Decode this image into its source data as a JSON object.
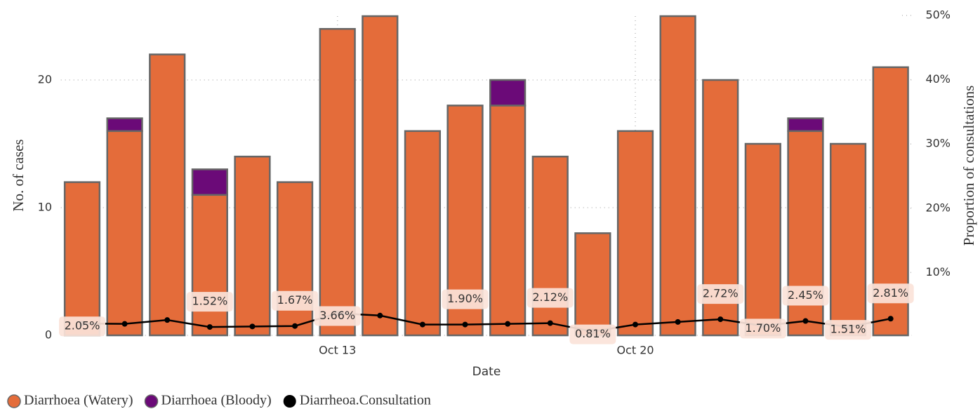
{
  "chart_data": {
    "type": "bar",
    "x_label": "Date",
    "y_label": "No. of cases",
    "y2_label": "Proportion of consultations",
    "categories": [
      null,
      null,
      null,
      null,
      null,
      null,
      "Oct 13",
      null,
      null,
      null,
      null,
      null,
      null,
      "Oct 20",
      null,
      null,
      null,
      null,
      null,
      null
    ],
    "series": [
      {
        "name": "Diarrhoea (Watery)",
        "color": "#e46c3a",
        "values": [
          12,
          16,
          22,
          11,
          14,
          12,
          24,
          25,
          16,
          18,
          18,
          14,
          8,
          16,
          25,
          20,
          15,
          16,
          15,
          21
        ]
      },
      {
        "name": "Diarrhoea (Bloody)",
        "color": "#6b0a78",
        "values": [
          0,
          1,
          0,
          2,
          0,
          0,
          0,
          0,
          0,
          0,
          2,
          0,
          0,
          0,
          0,
          0,
          0,
          1,
          0,
          0
        ]
      },
      {
        "name": "Diarrheoa.Consultation",
        "color": "#000000",
        "axis": "y2",
        "type": "line",
        "values": [
          2.05,
          2.0,
          2.6,
          1.52,
          1.6,
          1.67,
          3.66,
          3.3,
          1.9,
          1.9,
          2.0,
          2.12,
          0.81,
          1.9,
          2.3,
          2.72,
          1.7,
          2.45,
          1.51,
          2.81
        ],
        "value_labels": [
          "2.05%",
          null,
          null,
          "1.52%",
          null,
          "1.67%",
          "3.66%",
          null,
          null,
          "1.90%",
          null,
          "2.12%",
          "0.81%",
          null,
          null,
          "2.72%",
          "1.70%",
          "2.45%",
          "1.51%",
          "2.81%"
        ]
      }
    ],
    "ylim": [
      0,
      25
    ],
    "yticks": [
      0,
      10,
      20
    ],
    "y2lim": [
      0,
      50
    ],
    "y2ticks": [
      {
        "value": 10,
        "label": "10%"
      },
      {
        "value": 20,
        "label": "20%"
      },
      {
        "value": 30,
        "label": "30%"
      },
      {
        "value": 40,
        "label": "40%"
      },
      {
        "value": 50,
        "label": "50%"
      }
    ],
    "grid": true,
    "legend": "bottom"
  }
}
